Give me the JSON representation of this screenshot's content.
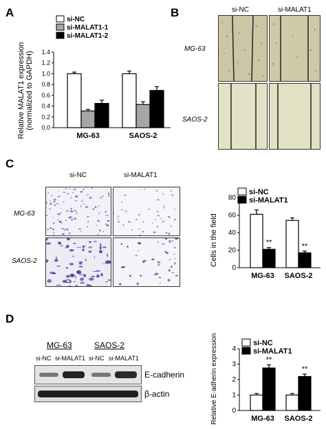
{
  "panels": {
    "a": {
      "label": "A"
    },
    "b": {
      "label": "B",
      "col1": "si-NC",
      "col2": "si-MALAT1",
      "row1": "MG-63",
      "row2": "SAOS-2"
    },
    "c": {
      "label": "C",
      "col1": "si-NC",
      "col2": "si-MALAT1",
      "row1": "MG-63",
      "row2": "SAOS-2"
    },
    "d": {
      "label": "D",
      "group1": "MG-63",
      "group2": "SAOS-2",
      "lanes": [
        "si-NC",
        "si-MALAT1",
        "si-NC",
        "si-MALAT1"
      ],
      "band1": "E-cadherin",
      "band2": "β-actin"
    }
  },
  "colors": {
    "white_bar": "#ffffff",
    "gray_bar": "#a6a6a6",
    "black_bar": "#000000"
  },
  "chart_data": [
    {
      "type": "bar",
      "id": "A",
      "categories": [
        "MG-63",
        "SAOS-2"
      ],
      "series": [
        {
          "name": "si-NC",
          "color": "#ffffff",
          "values": [
            1.0,
            1.0
          ],
          "errors": [
            0.03,
            0.05
          ]
        },
        {
          "name": "si-MALAT1-1",
          "color": "#a6a6a6",
          "values": [
            0.31,
            0.43
          ],
          "errors": [
            0.03,
            0.05
          ]
        },
        {
          "name": "si-MALAT1-2",
          "color": "#000000",
          "values": [
            0.45,
            0.69
          ],
          "errors": [
            0.06,
            0.07
          ]
        }
      ],
      "ylabel_line1": "Relative MALAT1 expression",
      "ylabel_line2": "(normalized to GAPDH)",
      "ylim": [
        0,
        1.4
      ],
      "yticks": [
        "0.0",
        "0.2",
        "0.4",
        "0.6",
        "0.8",
        "1.0",
        "1.2",
        "1.4"
      ],
      "legend": "top-left"
    },
    {
      "type": "bar",
      "id": "C",
      "categories": [
        "MG-63",
        "SAOS-2"
      ],
      "series": [
        {
          "name": "si-NC",
          "color": "#ffffff",
          "values": [
            61,
            54
          ],
          "errors": [
            5,
            3
          ]
        },
        {
          "name": "si-MALAT1",
          "color": "#000000",
          "values": [
            21,
            17
          ],
          "errors": [
            2,
            2
          ]
        }
      ],
      "annotations": [
        "**",
        "**"
      ],
      "ylabel": "Cells in the field",
      "ylim": [
        0,
        80
      ],
      "yticks": [
        "0",
        "20",
        "40",
        "60",
        "80"
      ],
      "legend": "top-left"
    },
    {
      "type": "bar",
      "id": "D",
      "categories": [
        "MG-63",
        "SAOS-2"
      ],
      "series": [
        {
          "name": "si-NC",
          "color": "#ffffff",
          "values": [
            1.0,
            1.0
          ],
          "errors": [
            0.1,
            0.1
          ]
        },
        {
          "name": "si-MALAT1",
          "color": "#000000",
          "values": [
            2.75,
            2.2
          ],
          "errors": [
            0.2,
            0.15
          ]
        }
      ],
      "annotations": [
        "**",
        "**"
      ],
      "ylabel": "Relative E-adherin expression",
      "ylim": [
        0,
        4
      ],
      "yticks": [
        "0",
        "1",
        "2",
        "3",
        "4"
      ],
      "legend": "top-left"
    }
  ]
}
